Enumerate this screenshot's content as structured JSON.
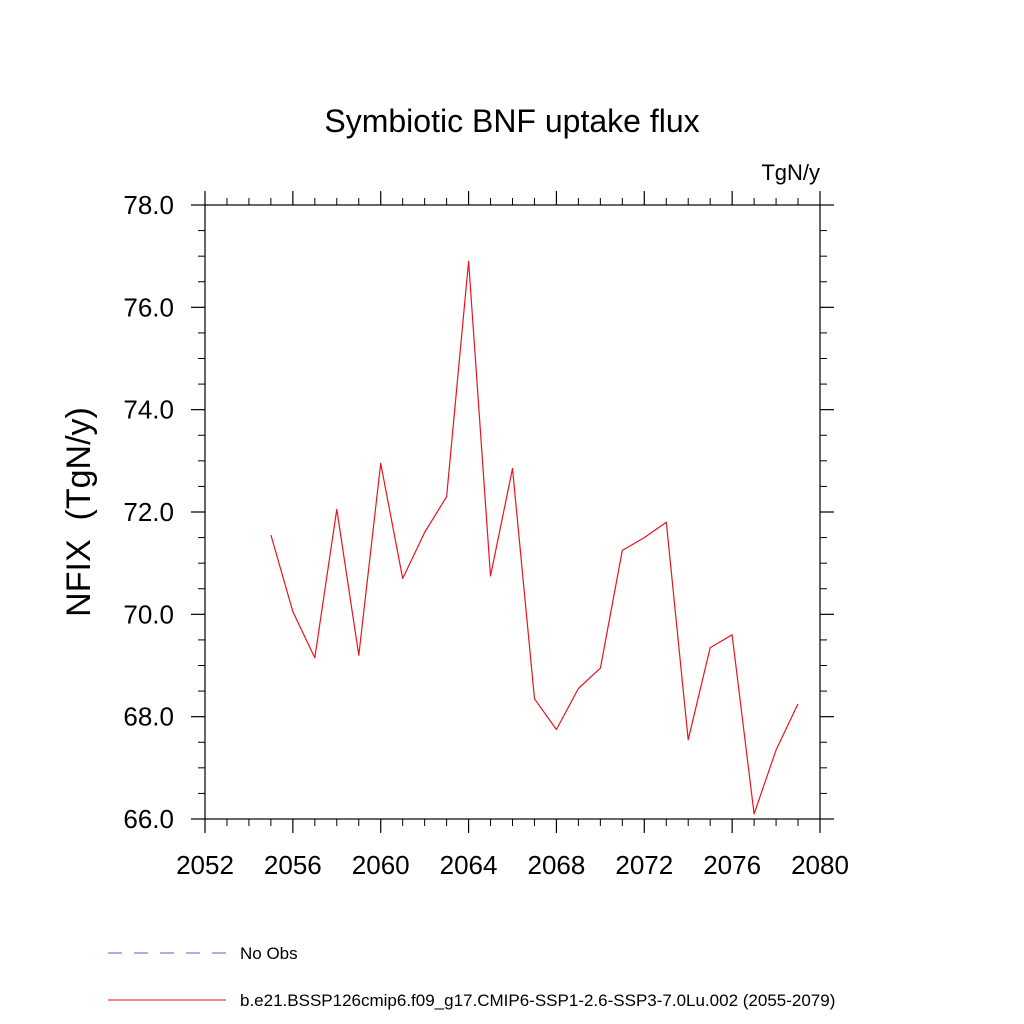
{
  "chart_data": {
    "type": "line",
    "title": "Symbiotic BNF uptake flux",
    "units": "TgN/y",
    "xlabel": "",
    "ylabel": "NFIX  (TgN/y)",
    "xlim": [
      2052,
      2080
    ],
    "ylim": [
      66.0,
      78.0
    ],
    "xticks": [
      2052,
      2056,
      2060,
      2064,
      2068,
      2072,
      2076,
      2080
    ],
    "xtick_labels": [
      "2052",
      "2056",
      "2060",
      "2064",
      "2068",
      "2072",
      "2076",
      "2080"
    ],
    "yticks": [
      66,
      68,
      70,
      72,
      74,
      76,
      78
    ],
    "ytick_labels": [
      "66.0",
      "68.0",
      "70.0",
      "72.0",
      "74.0",
      "76.0",
      "78.0"
    ],
    "grid": false,
    "series": [
      {
        "name": "b.e21.BSSP126cmip6.f09_g17.CMIP6-SSP1-2.6-SSP3-7.0Lu.002 (2055-2079)",
        "color": "#e8141c",
        "x": [
          2055,
          2056,
          2057,
          2058,
          2059,
          2060,
          2061,
          2062,
          2063,
          2064,
          2065,
          2066,
          2067,
          2068,
          2069,
          2070,
          2071,
          2072,
          2073,
          2074,
          2075,
          2076,
          2077,
          2078,
          2079
        ],
        "values": [
          71.55,
          70.05,
          69.15,
          72.05,
          69.2,
          72.95,
          70.7,
          71.6,
          72.3,
          76.9,
          70.75,
          72.85,
          68.35,
          67.75,
          68.55,
          68.95,
          71.25,
          71.5,
          71.8,
          67.55,
          69.35,
          69.6,
          66.1,
          67.35,
          68.25
        ]
      }
    ],
    "legend": [
      {
        "label": "No Obs",
        "color": "#6a5acd",
        "style": "dashed"
      },
      {
        "label": "b.e21.BSSP126cmip6.f09_g17.CMIP6-SSP1-2.6-SSP3-7.0Lu.002 (2055-2079)",
        "color": "#e8141c",
        "style": "solid"
      }
    ]
  }
}
